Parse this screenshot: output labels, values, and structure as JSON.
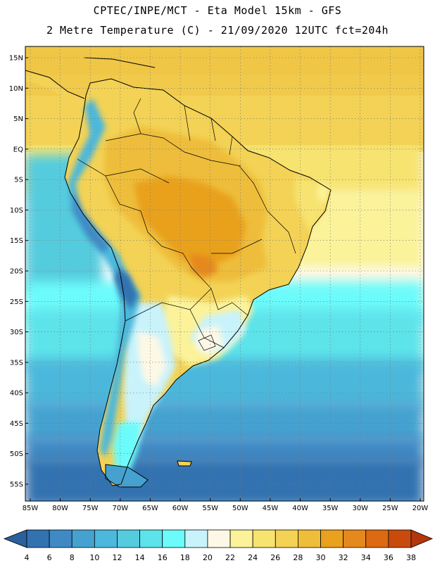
{
  "header": {
    "line1": "CPTEC/INPE/MCT -  Eta Model 15km - GFS",
    "line2": "2 Metre Temperature (C) - 21/09/2020 12UTC fct=204h"
  },
  "map": {
    "lat_labels": [
      "15N",
      "10N",
      "5N",
      "EQ",
      "5S",
      "10S",
      "15S",
      "20S",
      "25S",
      "30S",
      "35S",
      "40S",
      "45S",
      "50S",
      "55S"
    ],
    "lon_labels": [
      "85W",
      "80W",
      "75W",
      "70W",
      "65W",
      "60W",
      "55W",
      "50W",
      "45W",
      "40W",
      "35W",
      "30W",
      "25W",
      "20W"
    ],
    "lat_range": [
      15,
      -57
    ],
    "lon_range": [
      -85,
      -20
    ]
  },
  "colorbar": {
    "labels": [
      "4",
      "6",
      "8",
      "10",
      "12",
      "14",
      "16",
      "18",
      "20",
      "22",
      "24",
      "26",
      "28",
      "30",
      "32",
      "34",
      "36",
      "38"
    ],
    "colors": [
      "#2b5f9e",
      "#3372b0",
      "#3f8ac4",
      "#45a2d0",
      "#4cb8db",
      "#55ccde",
      "#5de3ea",
      "#6cfbfb",
      "#c9f3fb",
      "#fdf8e6",
      "#fbf29a",
      "#f7e370",
      "#f3d255",
      "#eebd3a",
      "#e9a11e",
      "#e5891c",
      "#dc6a12",
      "#c84b0d",
      "#b5360a"
    ]
  }
}
